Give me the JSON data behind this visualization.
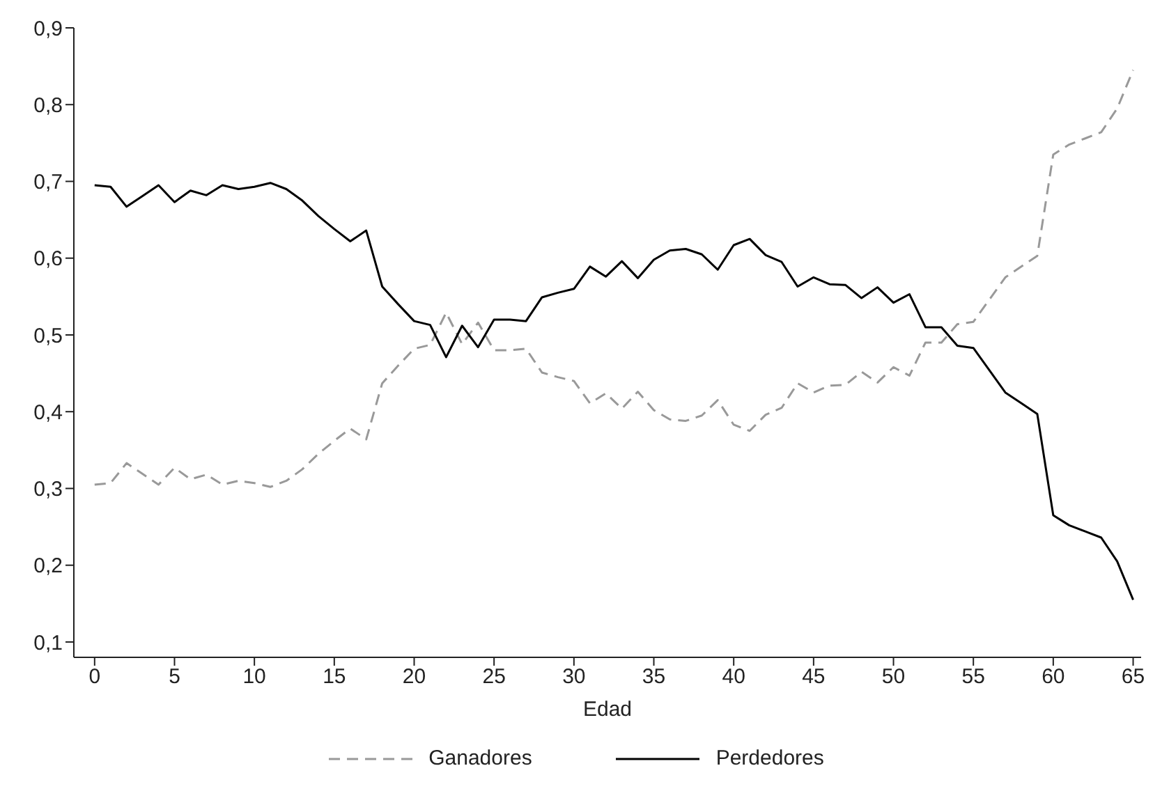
{
  "chart_data": {
    "type": "line",
    "xlabel": "Edad",
    "x": [
      0,
      1,
      2,
      3,
      4,
      5,
      6,
      7,
      8,
      9,
      10,
      11,
      12,
      13,
      14,
      15,
      16,
      17,
      18,
      19,
      20,
      21,
      22,
      23,
      24,
      25,
      26,
      27,
      28,
      29,
      30,
      31,
      32,
      33,
      34,
      35,
      36,
      37,
      38,
      39,
      40,
      41,
      42,
      43,
      44,
      45,
      46,
      47,
      48,
      49,
      50,
      51,
      52,
      53,
      54,
      55,
      56,
      57,
      58,
      59,
      60,
      61,
      62,
      63,
      64,
      65
    ],
    "xlim": [
      -1.3,
      65.5
    ],
    "xticks": [
      0,
      5,
      10,
      15,
      20,
      25,
      30,
      35,
      40,
      45,
      50,
      55,
      60,
      65
    ],
    "ylim": [
      0.08,
      0.9
    ],
    "yticks": [
      {
        "value": 0.1,
        "label": "0,1"
      },
      {
        "value": 0.2,
        "label": "0,2"
      },
      {
        "value": 0.3,
        "label": "0,3"
      },
      {
        "value": 0.4,
        "label": "0,4"
      },
      {
        "value": 0.5,
        "label": "0,5"
      },
      {
        "value": 0.6,
        "label": "0,6"
      },
      {
        "value": 0.7,
        "label": "0,7"
      },
      {
        "value": 0.8,
        "label": "0,8"
      },
      {
        "value": 0.9,
        "label": "0,9"
      }
    ],
    "grid": false,
    "legend": "bottom",
    "marker": "none",
    "series": [
      {
        "name": "Ganadores",
        "color": "#999999",
        "line_style": "dashed",
        "values": [
          0.305,
          0.307,
          0.333,
          0.319,
          0.305,
          0.327,
          0.312,
          0.318,
          0.305,
          0.31,
          0.307,
          0.302,
          0.31,
          0.325,
          0.345,
          0.362,
          0.378,
          0.364,
          0.437,
          0.46,
          0.482,
          0.487,
          0.529,
          0.488,
          0.516,
          0.48,
          0.48,
          0.482,
          0.451,
          0.445,
          0.44,
          0.411,
          0.424,
          0.404,
          0.426,
          0.402,
          0.39,
          0.388,
          0.395,
          0.415,
          0.383,
          0.375,
          0.396,
          0.405,
          0.437,
          0.425,
          0.434,
          0.435,
          0.452,
          0.438,
          0.458,
          0.447,
          0.49,
          0.49,
          0.514,
          0.517,
          0.546,
          0.575,
          0.589,
          0.603,
          0.735,
          0.748,
          0.756,
          0.764,
          0.795,
          0.845
        ]
      },
      {
        "name": "Perdedores",
        "color": "#000000",
        "line_style": "solid",
        "values": [
          0.695,
          0.693,
          0.667,
          0.681,
          0.695,
          0.673,
          0.688,
          0.682,
          0.695,
          0.69,
          0.693,
          0.698,
          0.69,
          0.675,
          0.655,
          0.638,
          0.622,
          0.636,
          0.563,
          0.54,
          0.518,
          0.513,
          0.471,
          0.512,
          0.484,
          0.52,
          0.52,
          0.518,
          0.549,
          0.555,
          0.56,
          0.589,
          0.576,
          0.596,
          0.574,
          0.598,
          0.61,
          0.612,
          0.605,
          0.585,
          0.617,
          0.625,
          0.604,
          0.595,
          0.563,
          0.575,
          0.566,
          0.565,
          0.548,
          0.562,
          0.542,
          0.553,
          0.51,
          0.51,
          0.486,
          0.483,
          0.454,
          0.425,
          0.411,
          0.397,
          0.265,
          0.252,
          0.244,
          0.236,
          0.205,
          0.155
        ]
      }
    ]
  }
}
